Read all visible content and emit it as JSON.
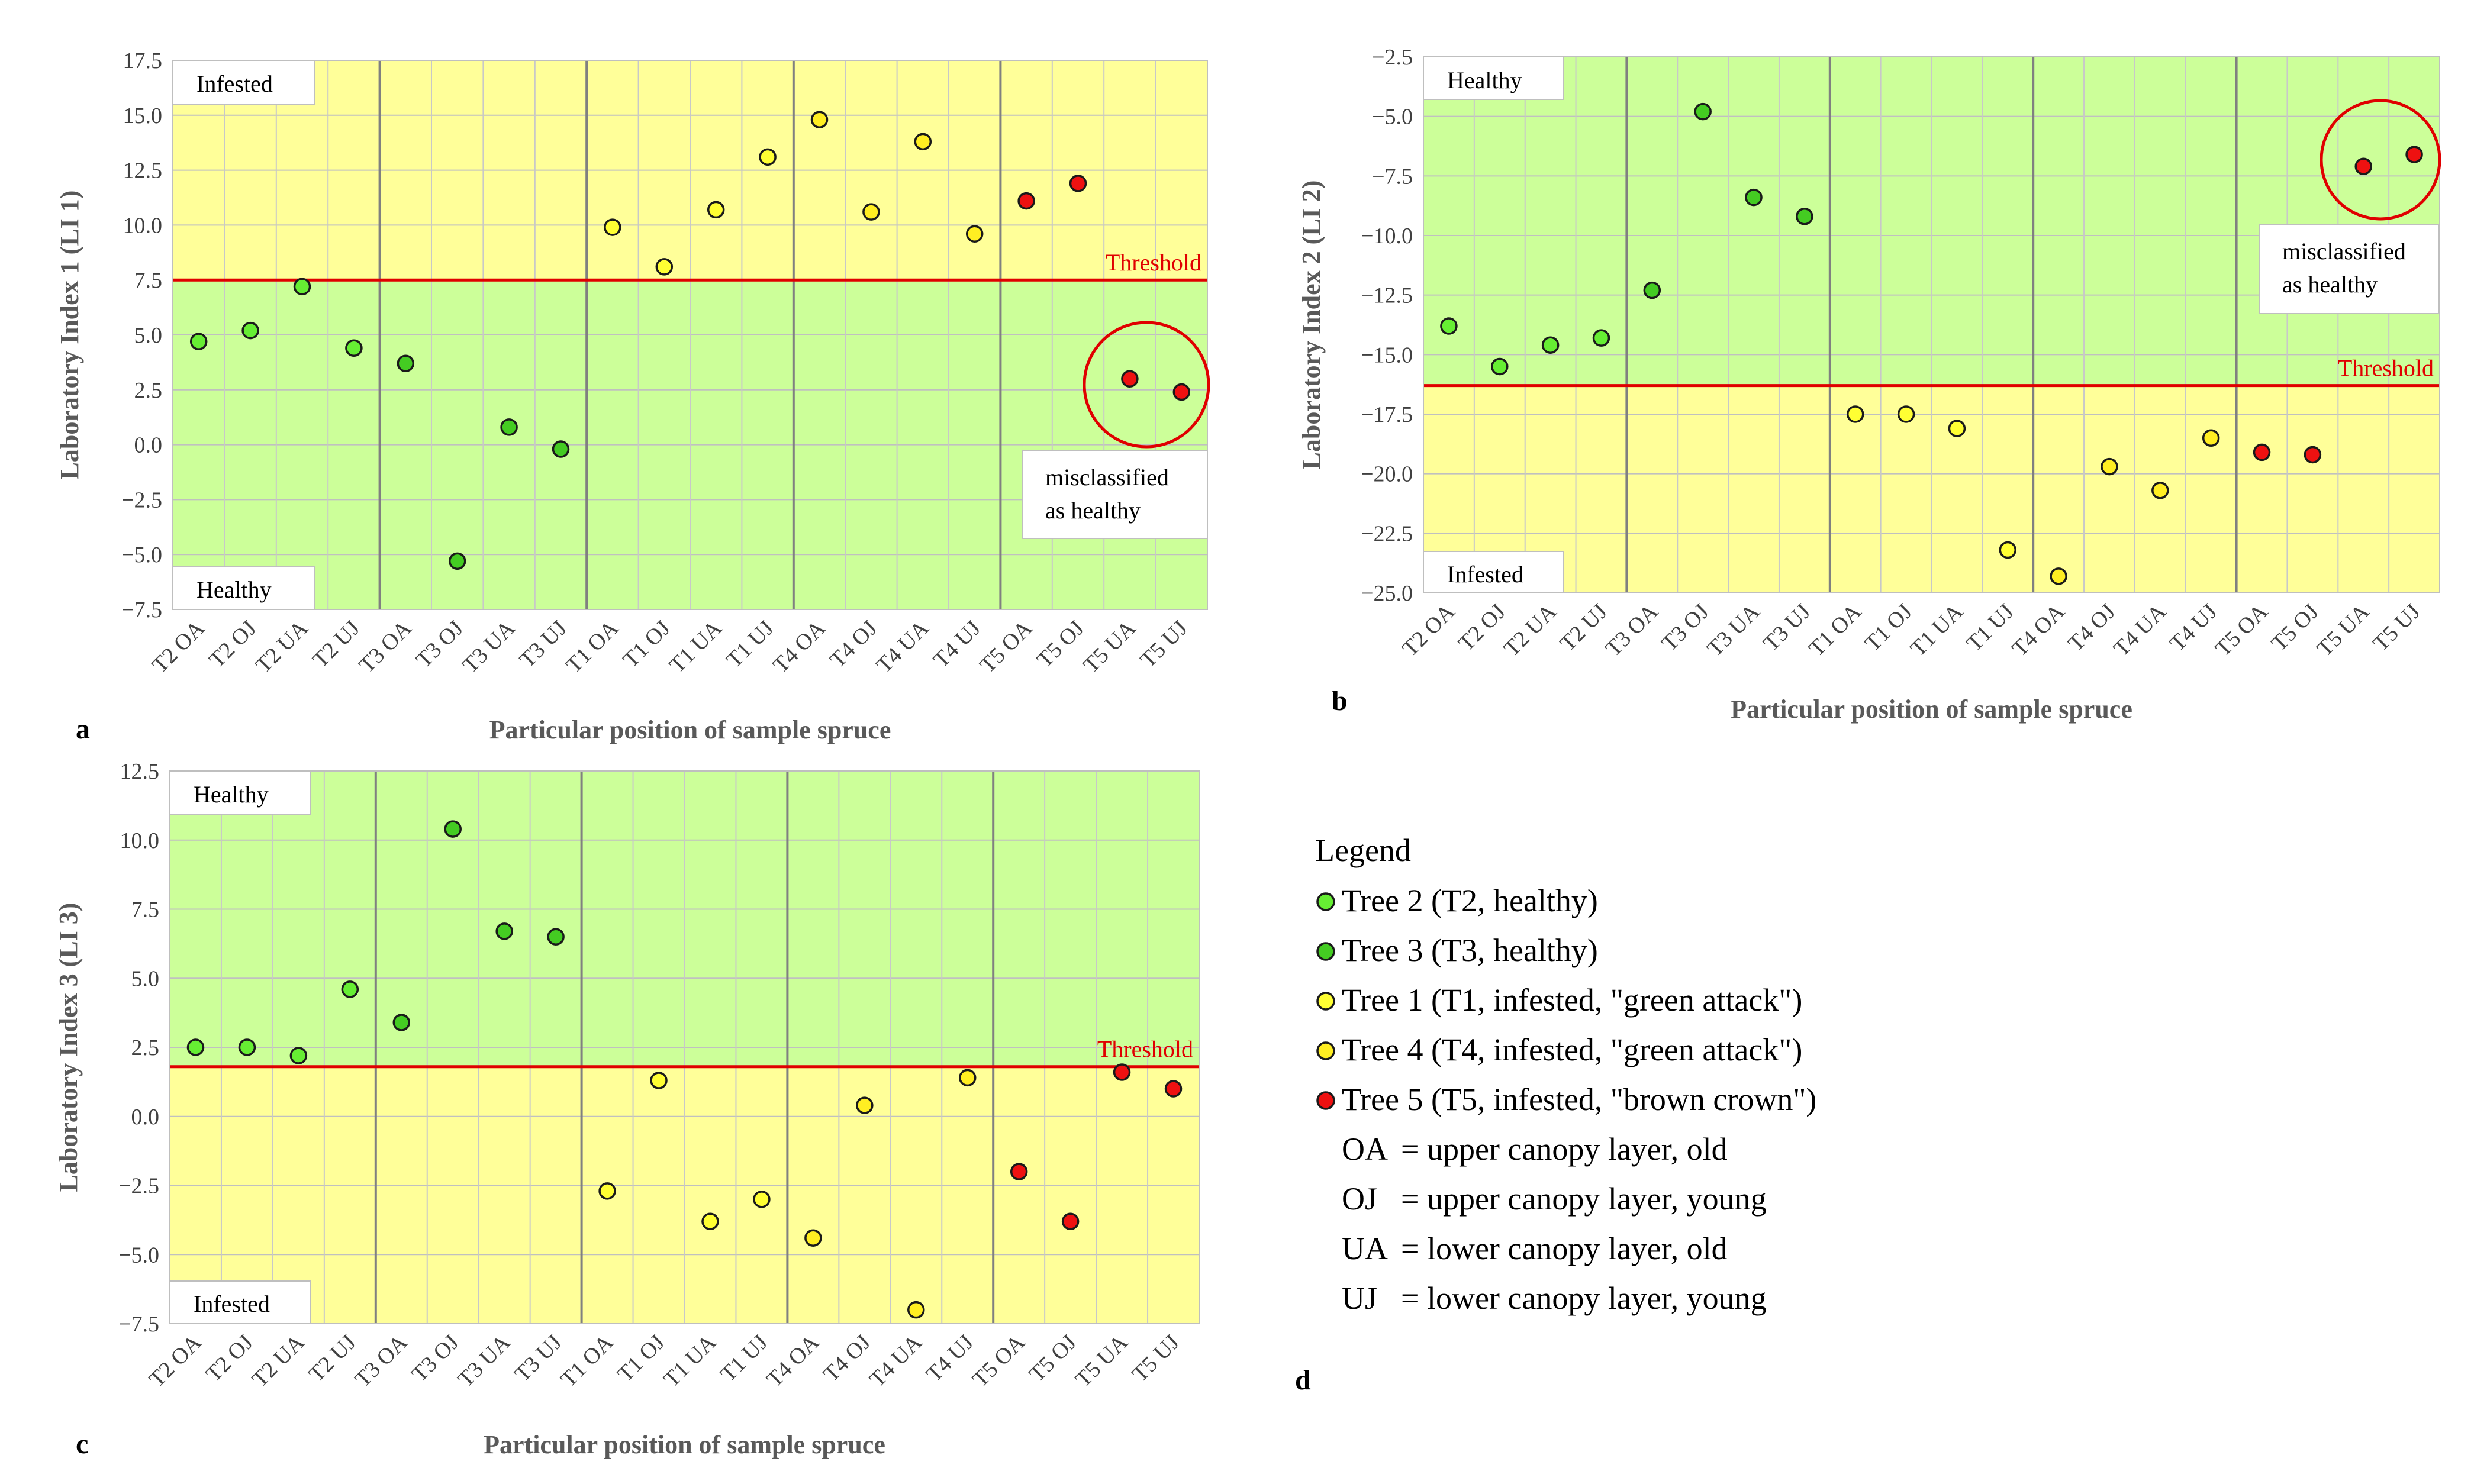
{
  "panels_common": {
    "categories": [
      "T2 OA",
      "T2 OJ",
      "T2 UA",
      "T2 UJ",
      "T3 OA",
      "T3 OJ",
      "T3 UA",
      "T3 UJ",
      "T1 OA",
      "T1 OJ",
      "T1 UA",
      "T1 UJ",
      "T4 OA",
      "T4 OJ",
      "T4 UA",
      "T4 UJ",
      "T5 OA",
      "T5 OJ",
      "T5 UA",
      "T5 UJ"
    ],
    "xlabel": "Particular position of sample spruce",
    "threshold_label": "Threshold",
    "misclassified_line1": "misclassified",
    "misclassified_line2": "as healthy",
    "colors": {
      "T1": "#ffff33",
      "T2": "#66ee33",
      "T3": "#44cc22",
      "T4": "#ffee22",
      "T5": "#ee1111",
      "threshold": "#e00000",
      "zone_green": "#ccff99",
      "zone_yellow": "#ffff99"
    }
  },
  "chart_data": [
    {
      "type": "scatter",
      "panel": "a",
      "ylabel": "Laboratory Index 1 (LI 1)",
      "ylim": [
        -7.5,
        17.5
      ],
      "yticks": [
        "17.5",
        "15.0",
        "12.5",
        "10.0",
        "7.5",
        "5.0",
        "2.5",
        "0.0",
        "−2.5",
        "−5.0",
        "−7.5"
      ],
      "threshold": 7.5,
      "upper_label": "Infested",
      "lower_label": "Healthy",
      "values": [
        4.7,
        5.2,
        7.2,
        4.4,
        3.7,
        -5.3,
        0.8,
        -0.2,
        9.9,
        8.1,
        10.7,
        13.1,
        14.8,
        10.6,
        13.8,
        9.6,
        11.1,
        11.9,
        3.0,
        2.4
      ]
    },
    {
      "type": "scatter",
      "panel": "b",
      "ylabel": "Laboratory Index 2 (LI 2)",
      "ylim": [
        -25.0,
        -2.5
      ],
      "yticks": [
        "−2.5",
        "−5.0",
        "−7.5",
        "−10.0",
        "−12.5",
        "−15.0",
        "−17.5",
        "−20.0",
        "−22.5",
        "−25.0"
      ],
      "threshold": -16.3,
      "upper_label": "Healthy",
      "lower_label": "Infested",
      "values": [
        -13.8,
        -15.5,
        -14.6,
        -14.3,
        -12.3,
        -4.8,
        -8.4,
        -9.2,
        -17.5,
        -17.5,
        -18.1,
        -23.2,
        -24.3,
        -19.7,
        -20.7,
        -18.5,
        -19.1,
        -19.2,
        -7.1,
        -6.6
      ]
    },
    {
      "type": "scatter",
      "panel": "c",
      "ylabel": "Laboratory Index 3 (LI 3)",
      "ylim": [
        -7.5,
        12.5
      ],
      "yticks": [
        "12.5",
        "10.0",
        "7.5",
        "5.0",
        "2.5",
        "0.0",
        "−2.5",
        "−5.0",
        "−7.5"
      ],
      "threshold": 1.8,
      "upper_label": "Healthy",
      "lower_label": "Infested",
      "values": [
        2.5,
        2.5,
        2.2,
        4.6,
        3.4,
        10.4,
        6.7,
        6.5,
        -2.7,
        1.3,
        -3.8,
        -3.0,
        -4.4,
        0.4,
        -7.0,
        1.4,
        -2.0,
        -3.8,
        1.6,
        1.0
      ]
    }
  ],
  "legend": {
    "title": "Legend",
    "series": [
      {
        "key": "T2",
        "label": "Tree 2 (T2, healthy)"
      },
      {
        "key": "T3",
        "label": "Tree 3 (T3, healthy)"
      },
      {
        "key": "T1",
        "label": "Tree 1 (T1, infested, \"green attack\")"
      },
      {
        "key": "T4",
        "label": "Tree 4 (T4, infested, \"green attack\")"
      },
      {
        "key": "T5",
        "label": "Tree 5 (T5, infested, \"brown crown\")"
      }
    ],
    "abbreviations": [
      {
        "abbr": "OA",
        "desc": "= upper canopy layer, old"
      },
      {
        "abbr": "OJ",
        "desc": "= upper canopy layer, young"
      },
      {
        "abbr": "UA",
        "desc": "= lower canopy layer, old"
      },
      {
        "abbr": "UJ",
        "desc": "= lower canopy layer, young"
      }
    ]
  },
  "panel_letters": {
    "a": "a",
    "b": "b",
    "c": "c",
    "d": "d"
  }
}
